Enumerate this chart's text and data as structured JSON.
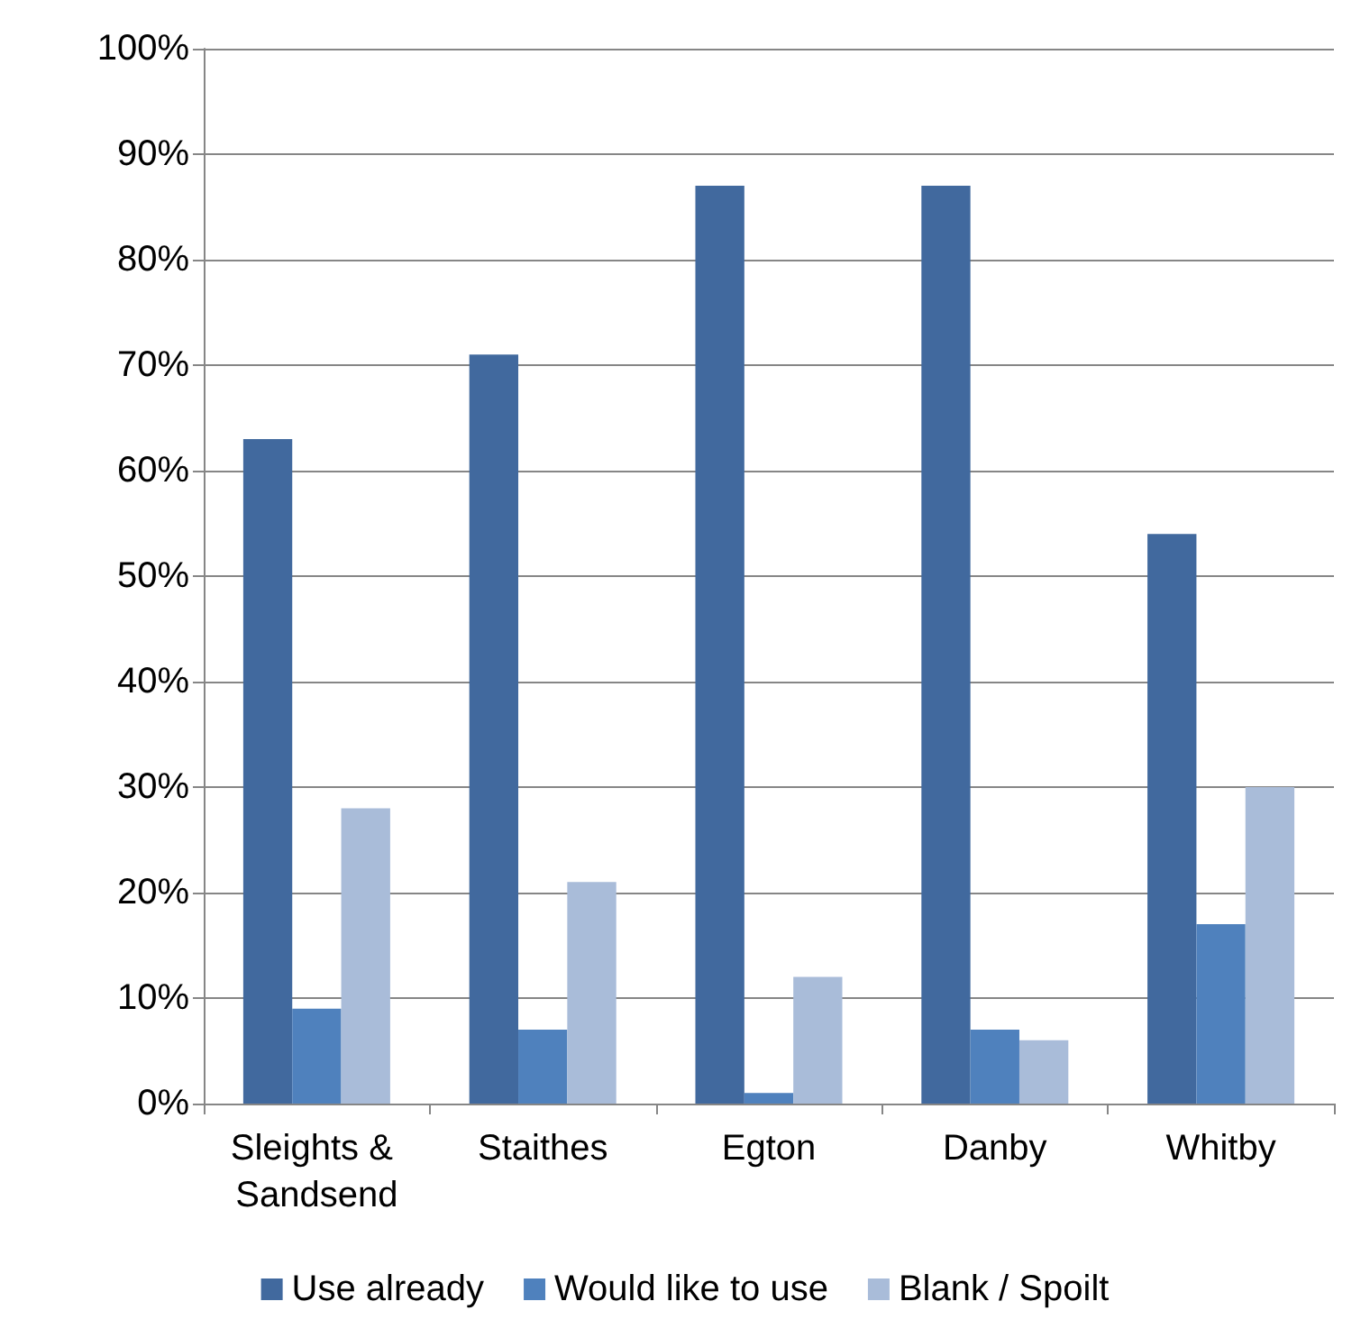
{
  "chart_data": {
    "type": "bar",
    "categories": [
      "Sleights & Sandsend",
      "Staithes",
      "Egton",
      "Danby",
      "Whitby"
    ],
    "series": [
      {
        "name": "Use already",
        "color": "#41699e",
        "values": [
          63,
          71,
          87,
          87,
          54
        ]
      },
      {
        "name": "Would like to use",
        "color": "#4f81bd",
        "values": [
          9,
          7,
          1,
          7,
          17
        ]
      },
      {
        "name": "Blank / Spoilt",
        "color": "#a9bcd9",
        "values": [
          28,
          21,
          12,
          6,
          30
        ]
      }
    ],
    "ylim": [
      0,
      100
    ],
    "yticks": [
      {
        "value": 0,
        "label": "0%"
      },
      {
        "value": 10,
        "label": "10%"
      },
      {
        "value": 20,
        "label": "20%"
      },
      {
        "value": 30,
        "label": "30%"
      },
      {
        "value": 40,
        "label": "40%"
      },
      {
        "value": 50,
        "label": "50%"
      },
      {
        "value": 60,
        "label": "60%"
      },
      {
        "value": 70,
        "label": "70%"
      },
      {
        "value": 80,
        "label": "80%"
      },
      {
        "value": 90,
        "label": "90%"
      },
      {
        "value": 100,
        "label": "100%"
      }
    ],
    "grid": "y",
    "legend": "bottom"
  }
}
